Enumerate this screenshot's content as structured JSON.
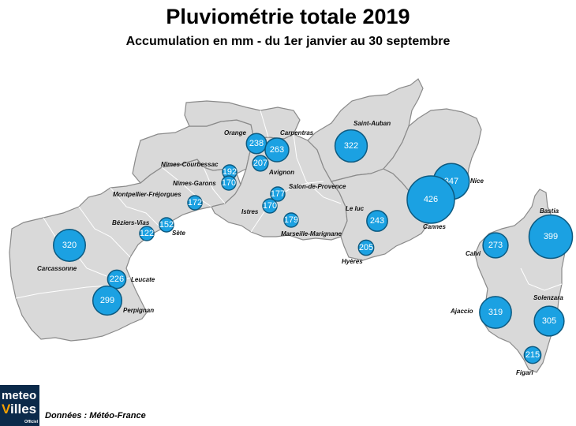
{
  "title": "Pluviométrie totale 2019",
  "subtitle": "Accumulation en mm - du 1er janvier au 30 septembre",
  "credit": "Données : Météo-France",
  "logo": {
    "line1": "meteo",
    "line2a": "V",
    "line2b": "illes",
    "line3": "Officiel"
  },
  "colors": {
    "bubble": "#1ba1e2",
    "bubble_stroke": "#0d5a80",
    "land": "#d9d9d9",
    "border": "#ffffff"
  },
  "stations": [
    {
      "name": "Carcassonne",
      "value": 320
    },
    {
      "name": "Leucate",
      "value": 226
    },
    {
      "name": "Perpignan",
      "value": 299
    },
    {
      "name": "Béziers-Vias",
      "value": 122
    },
    {
      "name": "Sète",
      "value": 152
    },
    {
      "name": "Montpellier-Fréjorgues",
      "value": 172
    },
    {
      "name": "Nîmes-Courbessac",
      "value": 192
    },
    {
      "name": "Nîmes-Garons",
      "value": 170
    },
    {
      "name": "Orange",
      "value": 238
    },
    {
      "name": "Carpentras",
      "value": 263
    },
    {
      "name": "Avignon",
      "value": 207
    },
    {
      "name": "Salon-de-Provence",
      "value": 177
    },
    {
      "name": "Istres",
      "value": 170
    },
    {
      "name": "Marseille-Marignane",
      "value": 179
    },
    {
      "name": "Saint-Auban",
      "value": 322
    },
    {
      "name": "Le luc",
      "value": 243
    },
    {
      "name": "Hyères",
      "value": 205
    },
    {
      "name": "Nice",
      "value": 347
    },
    {
      "name": "Cannes",
      "value": 426
    },
    {
      "name": "Bastia",
      "value": 399
    },
    {
      "name": "Calvi",
      "value": 273
    },
    {
      "name": "Ajaccio",
      "value": 319
    },
    {
      "name": "Solenzara",
      "value": 305
    },
    {
      "name": "Figari",
      "value": 215
    }
  ]
}
